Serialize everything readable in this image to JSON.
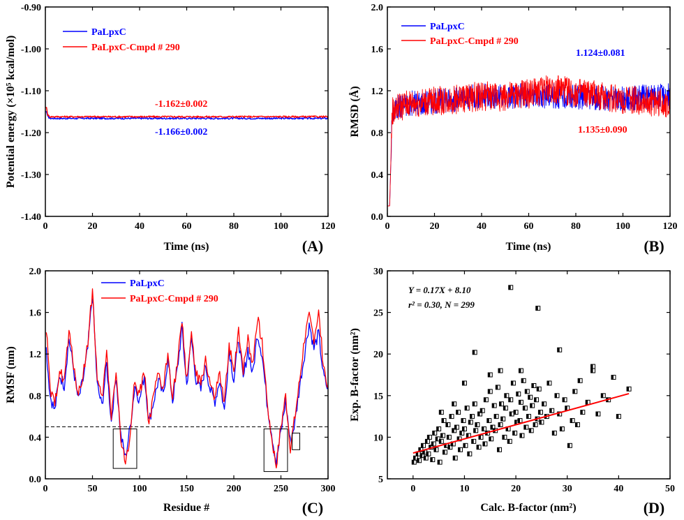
{
  "colors": {
    "blue": "#0000ff",
    "red": "#ff0000",
    "black": "#000000"
  },
  "panels": [
    {
      "letter": "(A)",
      "xlabel": "Time (ns)",
      "ylabel": "Potential energy (×10⁵ kcal/mol)"
    },
    {
      "letter": "(B)",
      "xlabel": "Time (ns)",
      "ylabel": "RMSD (Å)"
    },
    {
      "letter": "(C)",
      "xlabel": "Residue #",
      "ylabel": "RMSF (nm)"
    },
    {
      "letter": "(D)",
      "xlabel": "Calc. B-factor (nm²)",
      "ylabel": "Exp. B-factor (nm²)"
    }
  ],
  "chart_data": [
    {
      "type": "line",
      "panel": "(A)",
      "xlabel": "Time (ns)",
      "ylabel": "Potential energy (×10⁵ kcal/mol)",
      "xlim": [
        0,
        120
      ],
      "ylim": [
        -1.4,
        -0.9
      ],
      "xticks": [
        0,
        20,
        40,
        60,
        80,
        100,
        120
      ],
      "yticks": [
        -1.4,
        -1.3,
        -1.2,
        -1.1,
        -1.0,
        -0.9
      ],
      "legend": [
        "PaLpxC",
        "PaLpxC-Cmpd # 290"
      ],
      "legend_position": "top-left",
      "series": [
        {
          "name": "PaLpxC",
          "color": "blue",
          "x": [
            0,
            0.5,
            1,
            2,
            120
          ],
          "y": [
            -1.15,
            -1.15,
            -1.162,
            -1.166,
            -1.166
          ],
          "annotation": "-1.166±0.002"
        },
        {
          "name": "PaLpxC-Cmpd # 290",
          "color": "red",
          "x": [
            0,
            0.5,
            1,
            2,
            120
          ],
          "y": [
            -1.14,
            -1.14,
            -1.158,
            -1.162,
            -1.162
          ],
          "annotation": "-1.162±0.002"
        }
      ]
    },
    {
      "type": "line",
      "panel": "(B)",
      "xlabel": "Time (ns)",
      "ylabel": "RMSD (Å)",
      "xlim": [
        0,
        120
      ],
      "ylim": [
        0,
        2.0
      ],
      "xticks": [
        0,
        20,
        40,
        60,
        80,
        100,
        120
      ],
      "yticks": [
        0,
        0.4,
        0.8,
        1.2,
        1.6,
        2.0
      ],
      "legend": [
        "PaLpxC",
        "PaLpxC-Cmpd # 290"
      ],
      "legend_position": "top-left",
      "series": [
        {
          "name": "PaLpxC",
          "color": "blue",
          "x": [
            0,
            1,
            2,
            5,
            10,
            20,
            30,
            40,
            50,
            60,
            70,
            80,
            90,
            100,
            110,
            120
          ],
          "y": [
            0.1,
            0.1,
            1.0,
            1.05,
            1.08,
            1.1,
            1.12,
            1.15,
            1.14,
            1.16,
            1.15,
            1.14,
            1.13,
            1.12,
            1.14,
            1.15
          ],
          "spread": 0.12,
          "annotation": "1.124±0.081"
        },
        {
          "name": "PaLpxC-Cmpd # 290",
          "color": "red",
          "x": [
            0,
            1,
            2,
            5,
            10,
            20,
            30,
            40,
            50,
            60,
            70,
            80,
            90,
            100,
            110,
            120
          ],
          "y": [
            0.1,
            0.1,
            1.0,
            1.05,
            1.08,
            1.1,
            1.12,
            1.15,
            1.14,
            1.17,
            1.22,
            1.18,
            1.15,
            1.12,
            1.1,
            1.08
          ],
          "spread": 0.14,
          "annotation": "1.135±0.090"
        }
      ]
    },
    {
      "type": "line",
      "panel": "(C)",
      "xlabel": "Residue #",
      "ylabel": "RMSF (nm)",
      "xlim": [
        0,
        300
      ],
      "ylim": [
        0,
        2.0
      ],
      "xticks": [
        0,
        50,
        100,
        150,
        200,
        250,
        300
      ],
      "yticks": [
        0,
        0.4,
        0.8,
        1.2,
        1.6,
        2.0
      ],
      "legend": [
        "PaLpxC",
        "PaLpxC-Cmpd # 290"
      ],
      "legend_position": "top-center",
      "reference_line_y": 0.5,
      "boxes": [
        {
          "x": [
            72,
            97
          ],
          "y": [
            0.1,
            0.48
          ]
        },
        {
          "x": [
            232,
            257
          ],
          "y": [
            0.07,
            0.48
          ]
        },
        {
          "x": [
            262,
            270
          ],
          "y": [
            0.28,
            0.44
          ]
        }
      ],
      "series": [
        {
          "name": "PaLpxC",
          "color": "blue",
          "x": [
            1,
            5,
            10,
            15,
            20,
            25,
            30,
            35,
            40,
            45,
            50,
            55,
            60,
            65,
            70,
            75,
            80,
            85,
            90,
            95,
            100,
            105,
            110,
            115,
            120,
            125,
            130,
            135,
            140,
            145,
            150,
            155,
            160,
            165,
            170,
            175,
            180,
            185,
            190,
            195,
            200,
            205,
            210,
            215,
            220,
            225,
            230,
            235,
            240,
            245,
            250,
            255,
            260,
            265,
            270,
            275,
            280,
            285,
            290,
            295,
            300
          ],
          "y": [
            1.25,
            0.8,
            0.65,
            1.0,
            0.9,
            1.35,
            1.05,
            0.75,
            0.95,
            1.25,
            1.78,
            0.9,
            0.7,
            1.1,
            0.55,
            1.0,
            0.42,
            0.2,
            0.5,
            0.9,
            0.75,
            1.0,
            0.55,
            0.75,
            0.95,
            0.8,
            1.15,
            0.75,
            1.05,
            1.45,
            0.9,
            1.35,
            0.95,
            0.85,
            1.1,
            0.85,
            0.75,
            0.95,
            0.65,
            1.25,
            0.95,
            1.35,
            0.95,
            1.25,
            1.0,
            1.4,
            1.2,
            0.75,
            0.45,
            0.15,
            0.45,
            0.75,
            0.35,
            0.55,
            0.9,
            1.2,
            1.5,
            1.25,
            1.4,
            1.0,
            0.85
          ]
        },
        {
          "name": "PaLpxC-Cmpd # 290",
          "color": "red",
          "x": [
            1,
            5,
            10,
            15,
            20,
            25,
            30,
            35,
            40,
            45,
            50,
            55,
            60,
            65,
            70,
            75,
            80,
            85,
            90,
            95,
            100,
            105,
            110,
            115,
            120,
            125,
            130,
            135,
            140,
            145,
            150,
            155,
            160,
            165,
            170,
            175,
            180,
            185,
            190,
            195,
            200,
            205,
            210,
            215,
            220,
            225,
            230,
            235,
            240,
            245,
            250,
            255,
            260,
            265,
            270,
            275,
            280,
            285,
            290,
            295,
            300
          ],
          "y": [
            1.45,
            0.85,
            0.7,
            1.05,
            0.95,
            1.4,
            1.1,
            0.8,
            1.0,
            1.3,
            1.82,
            0.95,
            0.75,
            1.2,
            0.6,
            1.05,
            0.38,
            0.13,
            0.45,
            0.95,
            0.8,
            1.05,
            0.5,
            0.8,
            1.0,
            0.85,
            1.2,
            0.8,
            1.1,
            1.5,
            0.95,
            1.4,
            1.0,
            0.9,
            1.15,
            0.9,
            0.8,
            1.0,
            0.7,
            1.3,
            1.0,
            1.45,
            1.05,
            1.35,
            1.1,
            1.55,
            1.3,
            0.8,
            0.4,
            0.12,
            0.5,
            0.8,
            0.3,
            0.6,
            0.95,
            1.35,
            1.55,
            1.35,
            1.6,
            1.1,
            0.9
          ]
        }
      ]
    },
    {
      "type": "scatter",
      "panel": "(D)",
      "xlabel": "Calc. B-factor (nm²)",
      "ylabel": "Exp. B-factor (nm²)",
      "xlim": [
        -5,
        50
      ],
      "ylim": [
        5,
        30
      ],
      "xticks": [
        0,
        10,
        20,
        30,
        40,
        50
      ],
      "yticks": [
        5,
        10,
        15,
        20,
        25,
        30
      ],
      "annotation_equation": "Y = 0.17X + 8.10",
      "annotation_stats": "r² = 0.30, N = 299",
      "fit": {
        "slope": 0.17,
        "intercept": 8.1,
        "x_range": [
          0,
          42
        ]
      },
      "points_x": [
        0.2,
        0.5,
        1.0,
        1.2,
        1.5,
        1.8,
        2.0,
        2.3,
        2.5,
        2.8,
        3.0,
        3.2,
        3.5,
        3.8,
        4.0,
        4.2,
        4.5,
        4.8,
        5.0,
        5.2,
        5.5,
        5.8,
        6.0,
        6.2,
        6.5,
        6.8,
        7.0,
        7.2,
        7.5,
        7.8,
        8.0,
        8.2,
        8.5,
        8.8,
        9.0,
        9.2,
        9.5,
        9.8,
        10.0,
        10.2,
        10.5,
        10.8,
        11.0,
        11.2,
        11.5,
        11.8,
        12.0,
        12.2,
        12.5,
        12.8,
        13.0,
        13.2,
        13.5,
        13.8,
        14.0,
        14.2,
        14.5,
        14.8,
        15.0,
        15.2,
        15.5,
        15.8,
        16.0,
        16.2,
        16.5,
        16.8,
        17.0,
        17.2,
        17.5,
        17.8,
        18.0,
        18.2,
        18.5,
        18.8,
        19.0,
        19.2,
        19.5,
        19.8,
        20.0,
        20.2,
        20.5,
        20.8,
        21.0,
        21.2,
        21.5,
        21.8,
        22.0,
        22.2,
        22.5,
        22.8,
        23.0,
        23.2,
        23.5,
        23.8,
        24.0,
        24.2,
        24.5,
        24.8,
        25.0,
        25.5,
        26.0,
        26.5,
        27.0,
        27.5,
        28.0,
        28.5,
        29.0,
        29.5,
        30.0,
        30.5,
        31.0,
        31.5,
        32.0,
        32.5,
        33.0,
        34.0,
        35.0,
        36.0,
        37.0,
        38.0,
        39.0,
        40.0,
        42.0,
        17.0,
        24.3,
        19.0,
        28.5,
        12.0,
        15.0,
        21.0,
        35.0,
        5.5,
        8.0,
        10.0
      ],
      "points_y": [
        7.0,
        7.5,
        8.0,
        7.2,
        8.5,
        7.8,
        9.0,
        8.2,
        7.5,
        9.5,
        8.0,
        10.0,
        8.8,
        7.3,
        9.2,
        10.5,
        8.5,
        9.8,
        11.0,
        7.0,
        9.5,
        10.2,
        12.0,
        8.2,
        9.0,
        11.5,
        10.0,
        8.8,
        12.5,
        9.2,
        10.8,
        7.5,
        11.2,
        13.0,
        9.8,
        8.5,
        10.5,
        12.0,
        11.0,
        9.0,
        13.5,
        10.2,
        8.0,
        11.8,
        12.5,
        9.5,
        14.0,
        10.8,
        11.5,
        8.8,
        12.8,
        10.0,
        13.2,
        11.0,
        9.2,
        14.5,
        10.5,
        12.0,
        15.5,
        9.8,
        11.2,
        13.8,
        10.8,
        12.5,
        16.0,
        8.5,
        11.5,
        14.0,
        12.2,
        10.0,
        13.5,
        15.0,
        11.0,
        9.5,
        14.5,
        12.8,
        16.5,
        10.5,
        13.0,
        11.8,
        15.2,
        12.0,
        14.2,
        10.2,
        16.8,
        13.5,
        11.2,
        15.5,
        12.5,
        14.8,
        10.8,
        13.8,
        16.2,
        11.5,
        14.5,
        12.2,
        15.8,
        13.0,
        11.8,
        14.0,
        12.5,
        16.5,
        13.2,
        10.5,
        15.0,
        12.8,
        11.0,
        14.5,
        13.5,
        9.0,
        12.0,
        15.5,
        11.5,
        16.8,
        13.0,
        14.2,
        18.5,
        12.8,
        15.0,
        14.5,
        17.2,
        12.5,
        15.8,
        18.0,
        25.5,
        28.0,
        20.5,
        20.2,
        17.5,
        18.0,
        18.0,
        13.0,
        14.0,
        16.5,
        12.0
      ]
    }
  ]
}
